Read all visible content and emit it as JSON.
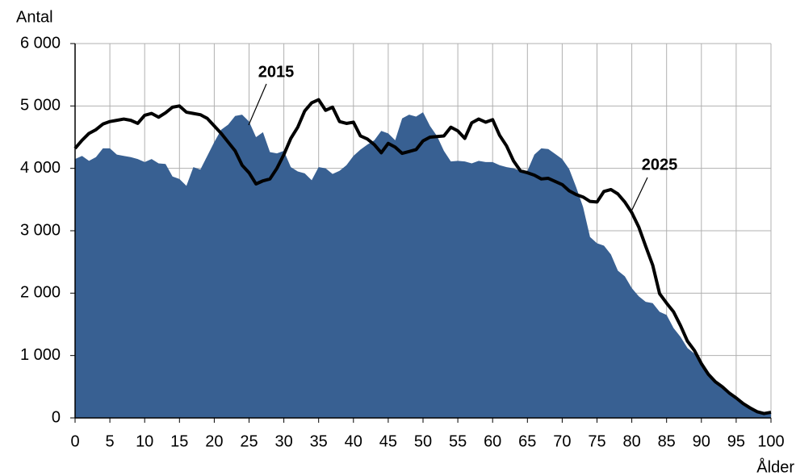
{
  "chart_data": {
    "type": "combo",
    "y_label": "Antal",
    "x_label": "Ålder",
    "x": [
      0,
      1,
      2,
      3,
      4,
      5,
      6,
      7,
      8,
      9,
      10,
      11,
      12,
      13,
      14,
      15,
      16,
      17,
      18,
      19,
      20,
      21,
      22,
      23,
      24,
      25,
      26,
      27,
      28,
      29,
      30,
      31,
      32,
      33,
      34,
      35,
      36,
      37,
      38,
      39,
      40,
      41,
      42,
      43,
      44,
      45,
      46,
      47,
      48,
      49,
      50,
      51,
      52,
      53,
      54,
      55,
      56,
      57,
      58,
      59,
      60,
      61,
      62,
      63,
      64,
      65,
      66,
      67,
      68,
      69,
      70,
      71,
      72,
      73,
      74,
      75,
      76,
      77,
      78,
      79,
      80,
      81,
      82,
      83,
      84,
      85,
      86,
      87,
      88,
      89,
      90,
      91,
      92,
      93,
      94,
      95,
      96,
      97,
      98,
      99,
      100
    ],
    "series": [
      {
        "name": "2015",
        "type": "area",
        "color": "#386092",
        "values": [
          4150,
          4200,
          4120,
          4180,
          4320,
          4320,
          4220,
          4200,
          4180,
          4150,
          4100,
          4150,
          4080,
          4070,
          3870,
          3830,
          3720,
          4020,
          3980,
          4200,
          4420,
          4620,
          4700,
          4840,
          4860,
          4750,
          4500,
          4580,
          4260,
          4240,
          4280,
          4020,
          3950,
          3920,
          3810,
          4020,
          4000,
          3910,
          3960,
          4050,
          4200,
          4300,
          4380,
          4450,
          4600,
          4560,
          4450,
          4800,
          4860,
          4830,
          4900,
          4680,
          4520,
          4280,
          4110,
          4120,
          4110,
          4080,
          4120,
          4100,
          4100,
          4050,
          4020,
          4000,
          3960,
          3960,
          4220,
          4320,
          4310,
          4230,
          4150,
          3990,
          3700,
          3380,
          2900,
          2800,
          2760,
          2620,
          2360,
          2270,
          2080,
          1950,
          1860,
          1840,
          1700,
          1650,
          1440,
          1300,
          1120,
          1030,
          880,
          720,
          600,
          500,
          400,
          310,
          240,
          170,
          110,
          70,
          90
        ]
      },
      {
        "name": "2025",
        "type": "line",
        "color": "#000000",
        "values": [
          4320,
          4450,
          4560,
          4620,
          4710,
          4750,
          4770,
          4790,
          4770,
          4720,
          4850,
          4880,
          4820,
          4890,
          4980,
          5000,
          4900,
          4880,
          4860,
          4800,
          4680,
          4560,
          4420,
          4280,
          4050,
          3930,
          3750,
          3800,
          3830,
          4000,
          4220,
          4480,
          4660,
          4920,
          5050,
          5100,
          4930,
          4980,
          4750,
          4720,
          4740,
          4520,
          4470,
          4380,
          4250,
          4400,
          4340,
          4240,
          4270,
          4300,
          4440,
          4500,
          4510,
          4520,
          4660,
          4600,
          4480,
          4730,
          4790,
          4740,
          4780,
          4530,
          4360,
          4120,
          3960,
          3930,
          3890,
          3830,
          3840,
          3790,
          3740,
          3640,
          3580,
          3540,
          3470,
          3460,
          3630,
          3660,
          3590,
          3460,
          3290,
          3060,
          2750,
          2450,
          1990,
          1840,
          1700,
          1480,
          1230,
          1080,
          870,
          700,
          580,
          500,
          400,
          320,
          230,
          160,
          100,
          70,
          90
        ]
      }
    ],
    "xlim": [
      0,
      100
    ],
    "xticks": [
      0,
      5,
      10,
      15,
      20,
      25,
      30,
      35,
      40,
      45,
      50,
      55,
      60,
      65,
      70,
      75,
      80,
      85,
      90,
      95,
      100
    ],
    "ylim": [
      0,
      6000
    ],
    "yticks": [
      0,
      {
        "value": 1000,
        "label": "1 000"
      },
      {
        "value": 2000,
        "label": "2 000"
      },
      {
        "value": 3000,
        "label": "3 000"
      },
      {
        "value": 4000,
        "label": "4 000"
      },
      {
        "value": 5000,
        "label": "5 000"
      },
      {
        "value": 6000,
        "label": "6 000"
      }
    ],
    "grid": true
  }
}
